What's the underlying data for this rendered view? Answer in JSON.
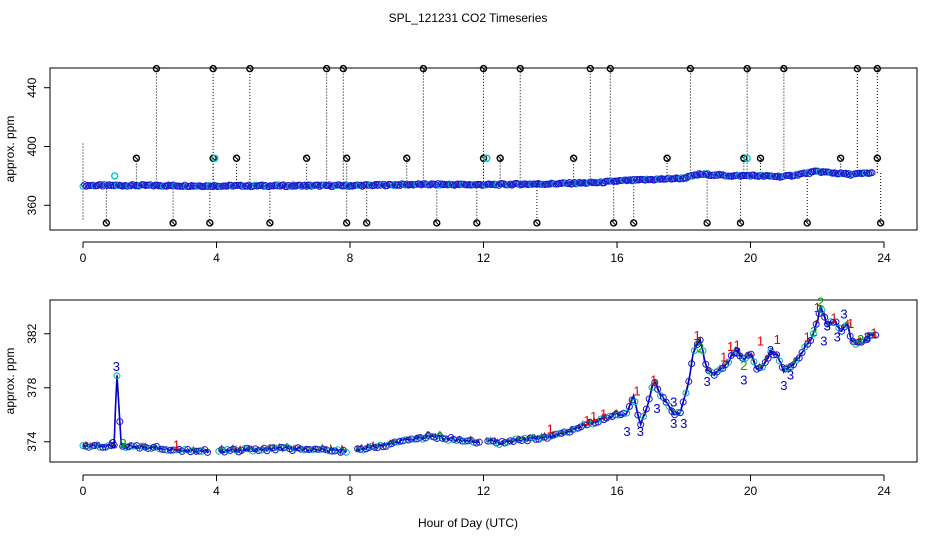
{
  "title": "SPL_121231  CO2 Timeseries",
  "xlabel": "Hour of Day (UTC)",
  "chart_data": [
    {
      "type": "scatter",
      "panel": "top",
      "ylabel": "approx. ppm",
      "xlim": [
        0,
        24
      ],
      "ylim": [
        345,
        455
      ],
      "xticks": [
        0,
        4,
        8,
        12,
        16,
        20,
        24
      ],
      "yticks": [
        360,
        400,
        440
      ],
      "baseline": [
        [
          0,
          373.5
        ],
        [
          2,
          373.5
        ],
        [
          4,
          373.2
        ],
        [
          6,
          373.3
        ],
        [
          8,
          373.4
        ],
        [
          10,
          374.2
        ],
        [
          12,
          374.0
        ],
        [
          14,
          374.6
        ],
        [
          15.5,
          375.5
        ],
        [
          16,
          376.5
        ],
        [
          17,
          377.5
        ],
        [
          18,
          378.5
        ],
        [
          18.5,
          381.2
        ],
        [
          19.5,
          380.0
        ],
        [
          20,
          380.2
        ],
        [
          21,
          379.5
        ],
        [
          22,
          383.0
        ],
        [
          23,
          381.0
        ],
        [
          23.6,
          382.0
        ]
      ],
      "series": [
        {
          "name": "spike",
          "color": "#000000",
          "x": [
            2.2,
            3.9,
            5.0,
            7.3,
            7.8,
            10.2,
            12.0,
            13.1,
            15.2,
            15.8,
            18.2,
            19.9,
            21.0,
            23.2,
            23.8
          ],
          "values": [
            453,
            453,
            453,
            453,
            453,
            453,
            453,
            453,
            453,
            453,
            453,
            453,
            453,
            453,
            453
          ]
        },
        {
          "name": "mid",
          "color": "#000000",
          "x": [
            1.6,
            3.9,
            4.6,
            6.7,
            7.9,
            9.7,
            12.0,
            12.5,
            14.7,
            17.5,
            19.8,
            20.3,
            22.7,
            23.8
          ],
          "values": [
            392,
            392,
            392,
            392,
            392,
            392,
            392,
            392,
            392,
            392,
            392,
            392,
            392,
            392
          ]
        },
        {
          "name": "low",
          "color": "#000000",
          "x": [
            0.7,
            2.7,
            3.8,
            5.6,
            7.9,
            8.5,
            10.6,
            11.8,
            13.6,
            15.9,
            16.5,
            18.7,
            19.7,
            21.7,
            23.9
          ],
          "values": [
            348,
            348,
            348,
            348,
            348,
            348,
            348,
            348,
            348,
            348,
            348,
            348,
            348,
            348,
            348
          ]
        },
        {
          "name": "cyan",
          "color": "#00c8c8",
          "x": [
            3.95,
            12.1,
            19.9,
            0.95
          ],
          "values": [
            392,
            392,
            392,
            380
          ]
        }
      ]
    },
    {
      "type": "line",
      "panel": "bottom",
      "ylabel": "approx. ppm",
      "xlim": [
        0,
        24
      ],
      "ylim": [
        372.5,
        384.5
      ],
      "xticks": [
        0,
        4,
        8,
        12,
        16,
        20,
        24
      ],
      "yticks": [
        374,
        378,
        382
      ],
      "labels": {
        "a": "1",
        "b": "2",
        "c": "3"
      },
      "series": [
        {
          "name": "blue",
          "color": "#0000cc",
          "points": [
            [
              0,
              373.7
            ],
            [
              0.6,
              373.6
            ],
            [
              0.95,
              373.8
            ],
            [
              1.0,
              379.6
            ],
            [
              1.15,
              373.6
            ],
            [
              2,
              373.6
            ],
            [
              3,
              373.4
            ],
            [
              3.75,
              373.3
            ],
            [
              4.05,
              373.3
            ],
            [
              5,
              373.4
            ],
            [
              6,
              373.5
            ],
            [
              7,
              373.4
            ],
            [
              7.85,
              373.3
            ],
            [
              8.2,
              373.4
            ],
            [
              9,
              373.7
            ],
            [
              9.6,
              374.1
            ],
            [
              10.5,
              374.4
            ],
            [
              11,
              374.2
            ],
            [
              11.8,
              374.0
            ],
            [
              12.1,
              374.1
            ],
            [
              12.5,
              373.9
            ],
            [
              13,
              374.1
            ],
            [
              13.5,
              374.2
            ],
            [
              14,
              374.3
            ],
            [
              14.5,
              374.7
            ],
            [
              15,
              375.2
            ],
            [
              15.5,
              375.6
            ],
            [
              15.8,
              375.8
            ],
            [
              16.0,
              376.1
            ],
            [
              16.3,
              376.0
            ],
            [
              16.5,
              377.5
            ],
            [
              16.7,
              375.2
            ],
            [
              16.9,
              376.5
            ],
            [
              17.1,
              378.5
            ],
            [
              17.3,
              377.5
            ],
            [
              17.5,
              376.8
            ],
            [
              17.7,
              376.0
            ],
            [
              17.9,
              376.2
            ],
            [
              18.1,
              377.8
            ],
            [
              18.3,
              380.8
            ],
            [
              18.5,
              381.5
            ],
            [
              18.7,
              379.2
            ],
            [
              18.9,
              379.0
            ],
            [
              19.2,
              379.5
            ],
            [
              19.4,
              380.2
            ],
            [
              19.6,
              380.8
            ],
            [
              19.8,
              380.0
            ],
            [
              20.0,
              380.5
            ],
            [
              20.2,
              379.3
            ],
            [
              20.4,
              379.6
            ],
            [
              20.6,
              380.6
            ],
            [
              20.8,
              380.4
            ],
            [
              21.0,
              379.2
            ],
            [
              21.2,
              379.6
            ],
            [
              21.4,
              380.0
            ],
            [
              21.6,
              380.8
            ],
            [
              21.8,
              381.6
            ],
            [
              22.0,
              382.8
            ],
            [
              22.1,
              384.1
            ],
            [
              22.3,
              382.6
            ],
            [
              22.5,
              383.0
            ],
            [
              22.7,
              382.2
            ],
            [
              22.9,
              382.8
            ],
            [
              23.0,
              381.6
            ],
            [
              23.2,
              381.2
            ],
            [
              23.5,
              381.6
            ],
            [
              23.7,
              382.0
            ]
          ]
        },
        {
          "name": "green",
          "color": "#00a000",
          "offset": 0.25
        },
        {
          "name": "red",
          "color": "#e00000",
          "offset": 0.45
        }
      ]
    }
  ]
}
